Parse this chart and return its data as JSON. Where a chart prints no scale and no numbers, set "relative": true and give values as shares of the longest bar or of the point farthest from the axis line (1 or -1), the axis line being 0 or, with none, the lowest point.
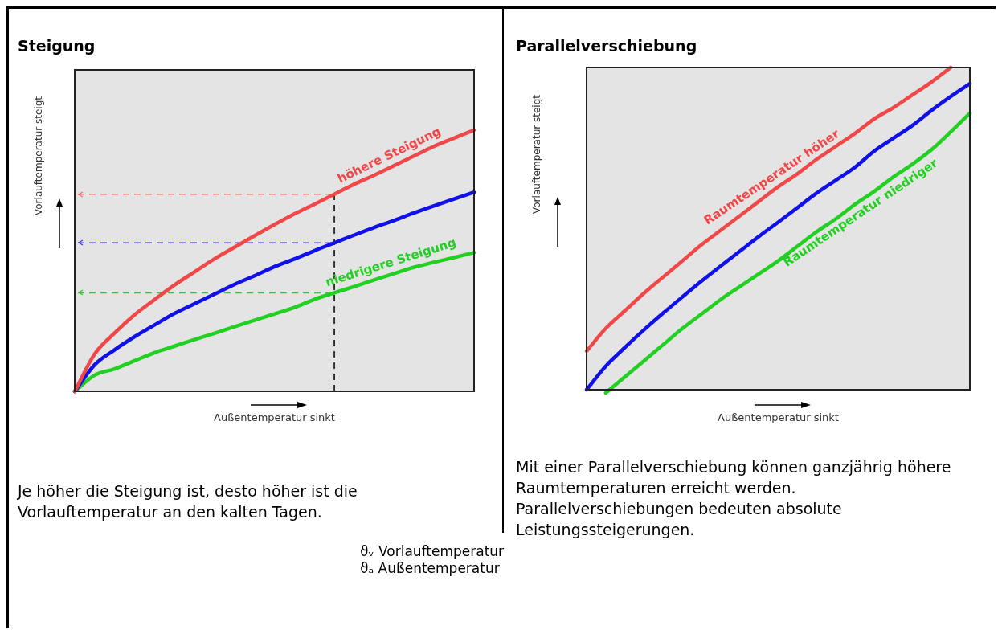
{
  "chart_data": [
    {
      "type": "line",
      "title": "Steigung",
      "xlabel": "Außentemperatur sinkt",
      "ylabel": "Vorlauftemperatur steigt",
      "relative": true,
      "categories": [
        null,
        null,
        null,
        null,
        null,
        null,
        null,
        null,
        null,
        null,
        null,
        null,
        null,
        null,
        null,
        null,
        null,
        null,
        null,
        null,
        null
      ],
      "series": [
        {
          "name": "höhere Steigung",
          "color": "#f04848",
          "values": [
            0,
            0.143,
            0.223,
            0.293,
            0.351,
            0.407,
            0.457,
            0.507,
            0.551,
            0.595,
            0.638,
            0.679,
            0.716,
            0.754,
            0.793,
            0.827,
            0.864,
            0.901,
            0.938,
            0.969,
            1
          ]
        },
        {
          "color": "#1010e8",
          "values": [
            0,
            0.102,
            0.159,
            0.209,
            0.254,
            0.298,
            0.335,
            0.372,
            0.409,
            0.442,
            0.477,
            0.506,
            0.538,
            0.568,
            0.598,
            0.627,
            0.654,
            0.683,
            0.71,
            0.736,
            0.762
          ]
        },
        {
          "name": "niedrigere Steigung",
          "color": "#22d022",
          "values": [
            0,
            0.062,
            0.086,
            0.117,
            0.148,
            0.173,
            0.198,
            0.222,
            0.247,
            0.272,
            0.296,
            0.321,
            0.352,
            0.377,
            0.401,
            0.426,
            0.451,
            0.475,
            0.494,
            0.512,
            0.531
          ]
        }
      ],
      "ref_lines": [
        {
          "axis": "y",
          "value": 0.754,
          "color": "#f07070",
          "line_style": "dashed"
        },
        {
          "axis": "y",
          "value": 0.568,
          "color": "#4040e0",
          "line_style": "dashed"
        },
        {
          "axis": "y",
          "value": 0.377,
          "color": "#40c040",
          "line_style": "dashed"
        }
      ],
      "annotations": [
        "Je höher die Steigung ist, desto höher ist die Vorlauftemperatur an den kalten Tagen."
      ]
    },
    {
      "type": "line",
      "title": "Parallelverschiebung",
      "xlabel": "Außentemperatur sinkt",
      "ylabel": "Vorlauftemperatur steigt",
      "relative": true,
      "categories": [
        null,
        null,
        null,
        null,
        null,
        null,
        null,
        null,
        null,
        null,
        null,
        null,
        null,
        null,
        null,
        null,
        null,
        null,
        null,
        null,
        null
      ],
      "series": [
        {
          "name": "Raumtemperatur höher",
          "color": "#f04848",
          "values": [
            0.12,
            0.19,
            0.245,
            0.3,
            0.35,
            0.4,
            0.45,
            0.495,
            0.54,
            0.585,
            0.63,
            0.67,
            0.715,
            0.755,
            0.795,
            0.84,
            0.875,
            0.915,
            0.955,
            1.0,
            null
          ]
        },
        {
          "color": "#1010e8",
          "values": [
            0,
            0.073,
            0.131,
            0.186,
            0.238,
            0.288,
            0.337,
            0.384,
            0.43,
            0.476,
            0.52,
            0.565,
            0.61,
            0.65,
            0.69,
            0.74,
            0.78,
            0.82,
            0.867,
            0.91,
            0.95
          ]
        },
        {
          "name": "Raumtemperatur niedriger",
          "color": "#22d022",
          "values": [
            null,
            -0.01,
            0.04,
            0.09,
            0.14,
            0.19,
            0.235,
            0.28,
            0.32,
            0.36,
            0.4,
            0.445,
            0.49,
            0.53,
            0.575,
            0.615,
            0.66,
            0.7,
            0.745,
            0.8,
            0.858
          ]
        }
      ],
      "annotations": [
        "Mit einer Parallelverschiebung können ganzjährig höhere Raumtemperaturen erreicht werden. Parallelverschiebungen bedeuten absolute Leistungssteigerungen."
      ]
    },
    {
      "type": "other",
      "annotations": [
        "ϑᵥ Vorlauftemperatur",
        "ϑₐ Außentemperatur"
      ]
    }
  ]
}
